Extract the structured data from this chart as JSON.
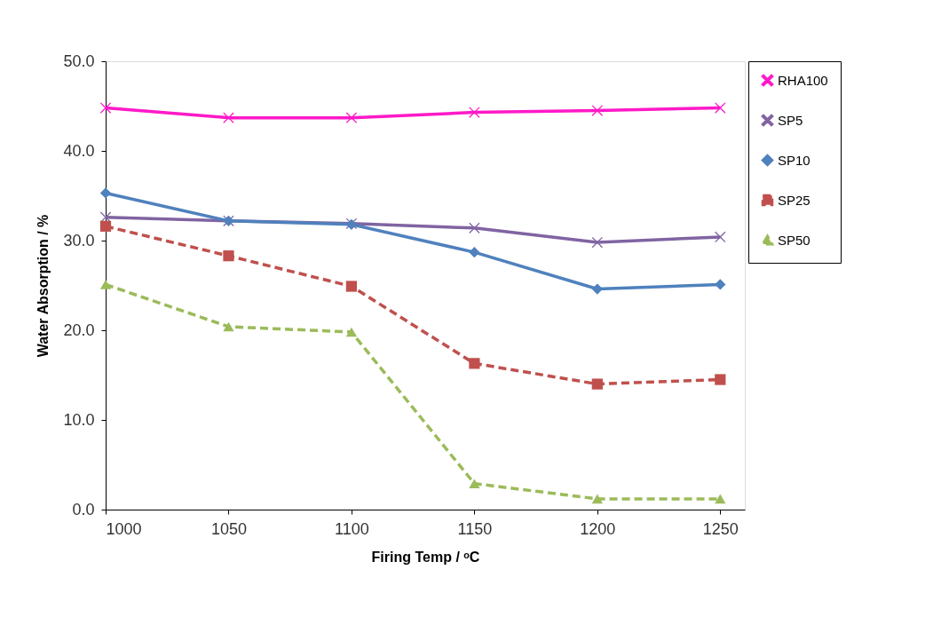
{
  "chart_data": {
    "type": "line",
    "xlabel": "Firing Temp / ᵒC",
    "ylabel": "Water Absorption / %",
    "x": [
      1000,
      1050,
      1100,
      1150,
      1200,
      1250
    ],
    "xlim": [
      1000,
      1260
    ],
    "xticks": [
      1000,
      1050,
      1100,
      1150,
      1200,
      1250
    ],
    "ylim": [
      0,
      50
    ],
    "yticks": [
      {
        "value": 0,
        "label": "0.0"
      },
      {
        "value": 10,
        "label": "10.0"
      },
      {
        "value": 20,
        "label": "20.0"
      },
      {
        "value": 30,
        "label": "30.0"
      },
      {
        "value": 40,
        "label": "40.0"
      },
      {
        "value": 50,
        "label": "50.0"
      }
    ],
    "grid": false,
    "legend": "right",
    "series": [
      {
        "name": "RHA100",
        "color": "#ff19c8",
        "marker": "cross",
        "line_style": "solid",
        "values": [
          44.8,
          43.7,
          43.7,
          44.3,
          44.5,
          44.8
        ]
      },
      {
        "name": "SP5",
        "color": "#8064a2",
        "marker": "cross",
        "line_style": "solid",
        "values": [
          32.6,
          32.2,
          31.9,
          31.4,
          29.8,
          30.4
        ]
      },
      {
        "name": "SP10",
        "color": "#4f81bd",
        "marker": "diamond",
        "line_style": "solid",
        "values": [
          35.3,
          32.2,
          31.8,
          28.7,
          24.6,
          25.1
        ]
      },
      {
        "name": "SP25",
        "color": "#c0504d",
        "marker": "square",
        "line_style": "dashed",
        "values": [
          31.6,
          28.3,
          24.9,
          16.3,
          14.0,
          14.5
        ]
      },
      {
        "name": "SP50",
        "color": "#9bbb59",
        "marker": "triangle",
        "line_style": "dashed",
        "values": [
          25.1,
          20.4,
          19.8,
          2.9,
          1.2,
          1.2
        ]
      }
    ]
  }
}
